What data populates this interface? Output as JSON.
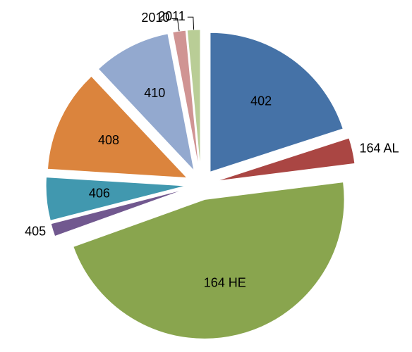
{
  "chart_data": {
    "type": "pie",
    "categories": [
      "402",
      "164 AL",
      "164 HE",
      "405",
      "406",
      "408",
      "410",
      "2010",
      "2011"
    ],
    "values": [
      20,
      3,
      46.5,
      1.5,
      5,
      12,
      9,
      1.5,
      1.5
    ],
    "colors": [
      "#4572a7",
      "#aa4643",
      "#89a54e",
      "#71588f",
      "#4198af",
      "#db843d",
      "#93a9cf",
      "#d09493",
      "#b9cd96"
    ]
  }
}
